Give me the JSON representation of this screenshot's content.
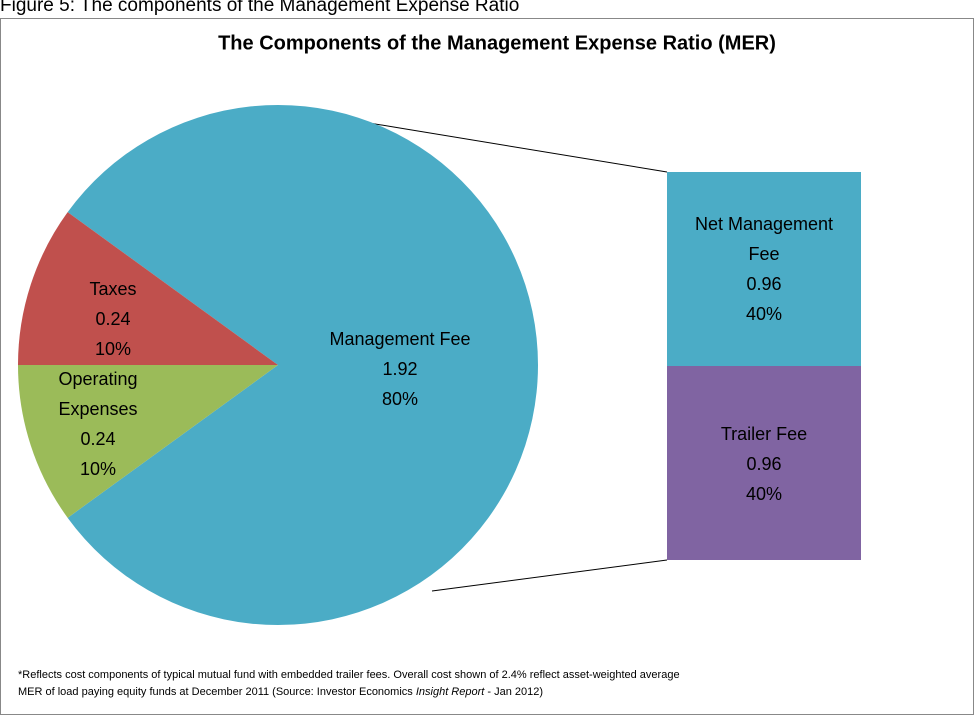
{
  "figure_caption": "Figure 5: The components of the Management Expense Ratio",
  "chart_data": {
    "type": "pie_of_bar",
    "title": "The Components of the Management Expense Ratio (MER)",
    "pie": {
      "categories": [
        "Management Fee",
        "Taxes",
        "Operating Expenses"
      ],
      "values": [
        1.92,
        0.24,
        0.24
      ],
      "percents": [
        80,
        10,
        10
      ],
      "percent_labels": [
        "80%",
        "10%",
        "10%"
      ],
      "colors": [
        "#4bacc6",
        "#c0504d",
        "#9bbb59"
      ]
    },
    "bar": {
      "categories": [
        "Net Management Fee",
        "Trailer Fee"
      ],
      "values": [
        0.96,
        0.96
      ],
      "percents": [
        40,
        40
      ],
      "percent_labels": [
        "40%",
        "40%"
      ],
      "colors": [
        "#4bacc6",
        "#8064a2"
      ]
    },
    "footnote": [
      "*Reflects cost  components of typical mutual fund with embedded trailer fees. Overall cost shown of 2.4%  reflect asset-weighted average",
      "MER of load paying equity funds at December 2011 (Source: Investor Economics ",
      "Insight Report",
      " - Jan 2012)"
    ]
  }
}
